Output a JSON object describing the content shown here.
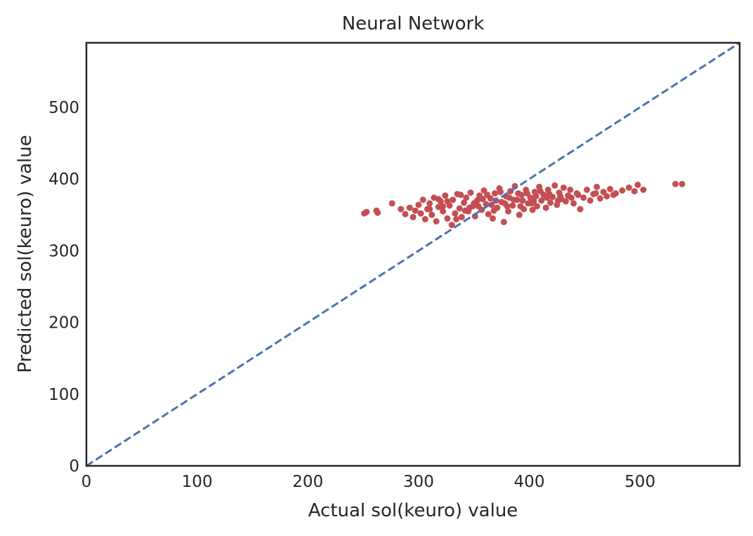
{
  "chart_data": {
    "type": "scatter",
    "title": "Neural Network",
    "xlabel": "Actual sol(keuro) value",
    "ylabel": "Predicted sol(keuro) value",
    "xlim": [
      0,
      590
    ],
    "ylim": [
      0,
      590
    ],
    "xticks": [
      0,
      100,
      200,
      300,
      400,
      500
    ],
    "yticks": [
      0,
      100,
      200,
      300,
      400,
      500
    ],
    "grid": false,
    "colors": {
      "points": "#c44e52",
      "reference_line": "#4c72b0",
      "frame": "#262626"
    },
    "reference_line": {
      "style": "dashed",
      "x": [
        0,
        590
      ],
      "y": [
        0,
        590
      ]
    },
    "series": [
      {
        "values": [
          {
            "x": 251,
            "y": 352
          },
          {
            "x": 253,
            "y": 354
          },
          {
            "x": 262,
            "y": 356
          },
          {
            "x": 263,
            "y": 353
          },
          {
            "x": 276,
            "y": 366
          },
          {
            "x": 284,
            "y": 358
          },
          {
            "x": 288,
            "y": 351
          },
          {
            "x": 292,
            "y": 360
          },
          {
            "x": 295,
            "y": 347
          },
          {
            "x": 297,
            "y": 356
          },
          {
            "x": 300,
            "y": 364
          },
          {
            "x": 302,
            "y": 352
          },
          {
            "x": 304,
            "y": 371
          },
          {
            "x": 306,
            "y": 344
          },
          {
            "x": 308,
            "y": 358
          },
          {
            "x": 310,
            "y": 366
          },
          {
            "x": 312,
            "y": 350
          },
          {
            "x": 314,
            "y": 374
          },
          {
            "x": 316,
            "y": 341
          },
          {
            "x": 318,
            "y": 361
          },
          {
            "x": 320,
            "y": 369
          },
          {
            "x": 322,
            "y": 355
          },
          {
            "x": 324,
            "y": 377
          },
          {
            "x": 326,
            "y": 345
          },
          {
            "x": 328,
            "y": 363
          },
          {
            "x": 330,
            "y": 336
          },
          {
            "x": 331,
            "y": 371
          },
          {
            "x": 333,
            "y": 352
          },
          {
            "x": 335,
            "y": 379
          },
          {
            "x": 337,
            "y": 359
          },
          {
            "x": 339,
            "y": 347
          },
          {
            "x": 341,
            "y": 367
          },
          {
            "x": 343,
            "y": 374
          },
          {
            "x": 345,
            "y": 355
          },
          {
            "x": 347,
            "y": 381
          },
          {
            "x": 349,
            "y": 362
          },
          {
            "x": 351,
            "y": 348
          },
          {
            "x": 353,
            "y": 370
          },
          {
            "x": 355,
            "y": 377
          },
          {
            "x": 357,
            "y": 357
          },
          {
            "x": 359,
            "y": 384
          },
          {
            "x": 361,
            "y": 365
          },
          {
            "x": 363,
            "y": 351
          },
          {
            "x": 365,
            "y": 373
          },
          {
            "x": 367,
            "y": 345
          },
          {
            "x": 369,
            "y": 380
          },
          {
            "x": 371,
            "y": 360
          },
          {
            "x": 373,
            "y": 387
          },
          {
            "x": 375,
            "y": 368
          },
          {
            "x": 377,
            "y": 340
          },
          {
            "x": 379,
            "y": 376
          },
          {
            "x": 381,
            "y": 355
          },
          {
            "x": 383,
            "y": 383
          },
          {
            "x": 385,
            "y": 363
          },
          {
            "x": 387,
            "y": 390
          },
          {
            "x": 389,
            "y": 371
          },
          {
            "x": 391,
            "y": 350
          },
          {
            "x": 393,
            "y": 378
          },
          {
            "x": 395,
            "y": 358
          },
          {
            "x": 397,
            "y": 385
          },
          {
            "x": 399,
            "y": 366
          },
          {
            "x": 401,
            "y": 374
          },
          {
            "x": 403,
            "y": 357
          },
          {
            "x": 405,
            "y": 382
          },
          {
            "x": 407,
            "y": 362
          },
          {
            "x": 409,
            "y": 389
          },
          {
            "x": 411,
            "y": 370
          },
          {
            "x": 413,
            "y": 378
          },
          {
            "x": 415,
            "y": 360
          },
          {
            "x": 417,
            "y": 385
          },
          {
            "x": 419,
            "y": 367
          },
          {
            "x": 421,
            "y": 375
          },
          {
            "x": 423,
            "y": 391
          },
          {
            "x": 425,
            "y": 364
          },
          {
            "x": 427,
            "y": 381
          },
          {
            "x": 429,
            "y": 372
          },
          {
            "x": 431,
            "y": 388
          },
          {
            "x": 433,
            "y": 369
          },
          {
            "x": 435,
            "y": 377
          },
          {
            "x": 437,
            "y": 385
          },
          {
            "x": 440,
            "y": 366
          },
          {
            "x": 443,
            "y": 380
          },
          {
            "x": 446,
            "y": 358
          },
          {
            "x": 449,
            "y": 374
          },
          {
            "x": 452,
            "y": 385
          },
          {
            "x": 455,
            "y": 370
          },
          {
            "x": 458,
            "y": 379
          },
          {
            "x": 461,
            "y": 389
          },
          {
            "x": 464,
            "y": 373
          },
          {
            "x": 467,
            "y": 382
          },
          {
            "x": 470,
            "y": 376
          },
          {
            "x": 473,
            "y": 386
          },
          {
            "x": 478,
            "y": 380
          },
          {
            "x": 484,
            "y": 384
          },
          {
            "x": 490,
            "y": 388
          },
          {
            "x": 495,
            "y": 383
          },
          {
            "x": 498,
            "y": 392
          },
          {
            "x": 503,
            "y": 385
          },
          {
            "x": 532,
            "y": 393
          },
          {
            "x": 538,
            "y": 393
          },
          {
            "x": 318,
            "y": 372
          },
          {
            "x": 334,
            "y": 344
          },
          {
            "x": 346,
            "y": 360
          },
          {
            "x": 362,
            "y": 378
          },
          {
            "x": 368,
            "y": 356
          },
          {
            "x": 374,
            "y": 382
          },
          {
            "x": 386,
            "y": 371
          },
          {
            "x": 392,
            "y": 362
          },
          {
            "x": 398,
            "y": 380
          },
          {
            "x": 404,
            "y": 369
          },
          {
            "x": 410,
            "y": 383
          },
          {
            "x": 416,
            "y": 374
          },
          {
            "x": 326,
            "y": 369
          },
          {
            "x": 338,
            "y": 378
          },
          {
            "x": 350,
            "y": 366
          },
          {
            "x": 358,
            "y": 372
          },
          {
            "x": 366,
            "y": 364
          },
          {
            "x": 378,
            "y": 366
          },
          {
            "x": 382,
            "y": 374
          },
          {
            "x": 394,
            "y": 370
          },
          {
            "x": 402,
            "y": 366
          },
          {
            "x": 418,
            "y": 379
          },
          {
            "x": 428,
            "y": 376
          },
          {
            "x": 438,
            "y": 374
          },
          {
            "x": 310,
            "y": 358
          },
          {
            "x": 322,
            "y": 362
          },
          {
            "x": 342,
            "y": 356
          },
          {
            "x": 354,
            "y": 362
          },
          {
            "x": 370,
            "y": 370
          },
          {
            "x": 380,
            "y": 362
          },
          {
            "x": 390,
            "y": 380
          },
          {
            "x": 406,
            "y": 376
          },
          {
            "x": 426,
            "y": 370
          },
          {
            "x": 444,
            "y": 378
          },
          {
            "x": 460,
            "y": 380
          },
          {
            "x": 476,
            "y": 378
          }
        ]
      }
    ]
  }
}
